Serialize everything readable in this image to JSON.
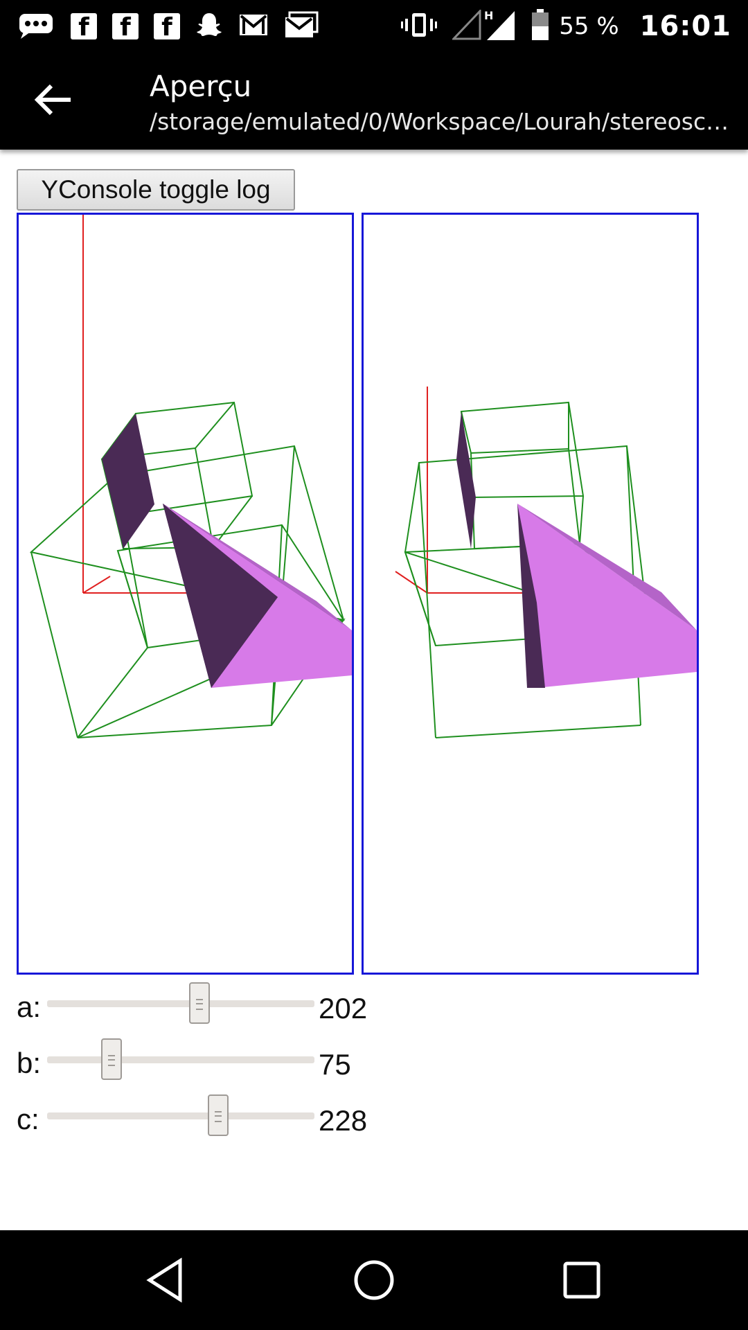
{
  "status_bar": {
    "left_icons": [
      "message-icon",
      "facebook-icon",
      "facebook-icon",
      "facebook-icon",
      "snapchat-icon",
      "gmail-icon",
      "gmail-icon"
    ],
    "battery_percent": "55 %",
    "time": "16:01",
    "network_label": "H"
  },
  "app_bar": {
    "title": "Aperçu",
    "subtitle": "/storage/emulated/0/Workspace/Lourah/stereosc…"
  },
  "console_button": {
    "label": "YConsole toggle log"
  },
  "sliders": [
    {
      "label": "a:",
      "value": "202",
      "fraction": 0.57
    },
    {
      "label": "b:",
      "value": "75",
      "fraction": 0.24
    },
    {
      "label": "c:",
      "value": "228",
      "fraction": 0.64
    }
  ],
  "colors": {
    "canvas_border": "#1717d8",
    "wireframe": "#1e8f1e",
    "axis": "#e02020",
    "face_dark": "#4a2a55",
    "face_light": "#d77ae8"
  },
  "nav_bar": {
    "buttons": [
      "back-icon",
      "home-icon",
      "recents-icon"
    ]
  }
}
